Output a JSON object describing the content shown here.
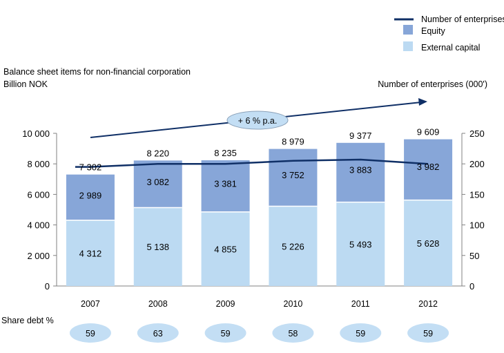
{
  "chart_data": {
    "type": "bar",
    "stacked": true,
    "title": "Balance sheet items for non-financial corporation",
    "ylabel": "Billion NOK",
    "y2label": "Number of enterprises (000')",
    "categories": [
      "2007",
      "2008",
      "2009",
      "2010",
      "2011",
      "2012"
    ],
    "ylim": [
      0,
      10000
    ],
    "y2lim": [
      0,
      250
    ],
    "yticks": [
      0,
      2000,
      4000,
      6000,
      8000,
      10000
    ],
    "ytick_labels": [
      "0",
      "2 000",
      "4 000",
      "6 000",
      "8 000",
      "10 000"
    ],
    "y2ticks": [
      0,
      50,
      100,
      150,
      200,
      250
    ],
    "y2tick_labels": [
      "0",
      "50",
      "100",
      "150",
      "200",
      "250"
    ],
    "grid": false,
    "legend_position": "top-right",
    "series": [
      {
        "name": "External capital",
        "type": "bar",
        "axis": "left",
        "color": "#bcdaf2",
        "values": [
          4312,
          5138,
          4855,
          5226,
          5493,
          5628
        ],
        "labels": [
          "4 312",
          "5 138",
          "4 855",
          "5 226",
          "5 493",
          "5 628"
        ]
      },
      {
        "name": "Equity",
        "type": "bar",
        "axis": "left",
        "color": "#87a6d8",
        "values": [
          2989,
          3082,
          3381,
          3752,
          3883,
          3982
        ],
        "labels": [
          "2 989",
          "3 082",
          "3 381",
          "3 752",
          "3 883",
          "3 982"
        ]
      },
      {
        "name": "Number of enterprises",
        "type": "line",
        "axis": "right",
        "color": "#0f2f66",
        "values": [
          195,
          200,
          200,
          205,
          207,
          200
        ]
      }
    ],
    "totals": [
      7302,
      8220,
      8235,
      8979,
      9377,
      9609
    ],
    "total_labels": [
      "7 302",
      "8 220",
      "8 235",
      "8 979",
      "9 377",
      "9 609"
    ],
    "legend": [
      {
        "name": "Number of enterprises",
        "kind": "line",
        "color": "#0f2f66"
      },
      {
        "name": "Equity",
        "kind": "box",
        "color": "#87a6d8"
      },
      {
        "name": "External capital",
        "kind": "box",
        "color": "#bcdaf2"
      }
    ],
    "annotation": {
      "text": "+ 6 % p.a.",
      "arrow_color": "#0f2f66",
      "bubble_color": "#c3def4"
    },
    "share_debt": {
      "label": "Share debt %",
      "values": [
        "59",
        "63",
        "59",
        "58",
        "59",
        "59"
      ],
      "bubble_color": "#c3def4"
    }
  }
}
